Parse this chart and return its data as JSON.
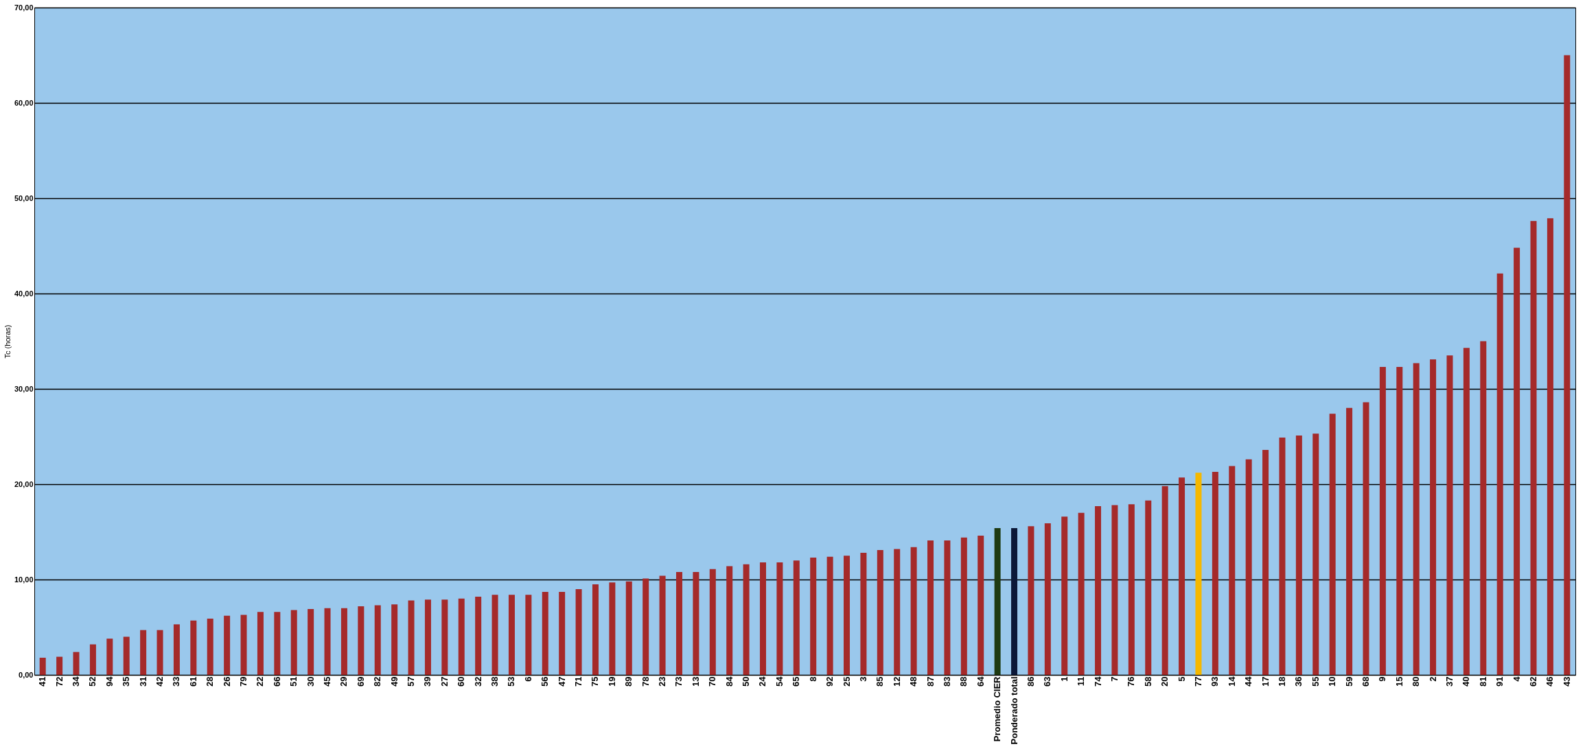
{
  "chart_data": {
    "type": "bar",
    "ylabel": "Tc (horas)",
    "categories": [
      "41",
      "72",
      "34",
      "52",
      "94",
      "35",
      "31",
      "42",
      "33",
      "61",
      "28",
      "26",
      "79",
      "22",
      "66",
      "51",
      "30",
      "45",
      "29",
      "69",
      "82",
      "49",
      "57",
      "39",
      "27",
      "60",
      "32",
      "38",
      "53",
      "6",
      "56",
      "47",
      "71",
      "75",
      "19",
      "89",
      "78",
      "23",
      "73",
      "13",
      "70",
      "84",
      "50",
      "24",
      "54",
      "65",
      "8",
      "92",
      "25",
      "3",
      "85",
      "12",
      "48",
      "87",
      "83",
      "88",
      "64",
      "Promedio CIER",
      "Ponderado total",
      "86",
      "63",
      "1",
      "11",
      "74",
      "7",
      "76",
      "58",
      "20",
      "5",
      "77",
      "93",
      "14",
      "44",
      "17",
      "18",
      "36",
      "55",
      "10",
      "59",
      "68",
      "9",
      "15",
      "80",
      "2",
      "37",
      "40",
      "81",
      "91",
      "4",
      "62",
      "46",
      "43"
    ],
    "values": [
      1.8,
      1.9,
      2.4,
      3.2,
      3.8,
      4.0,
      4.7,
      4.7,
      5.3,
      5.7,
      5.9,
      6.2,
      6.3,
      6.6,
      6.6,
      6.8,
      6.9,
      7.0,
      7.0,
      7.2,
      7.3,
      7.4,
      7.8,
      7.9,
      7.9,
      8.0,
      8.2,
      8.4,
      8.4,
      8.4,
      8.7,
      8.7,
      9.0,
      9.5,
      9.7,
      9.8,
      10.1,
      10.4,
      10.8,
      10.8,
      11.1,
      11.4,
      11.6,
      11.8,
      11.8,
      12.0,
      12.3,
      12.4,
      12.5,
      12.8,
      13.1,
      13.2,
      13.4,
      14.1,
      14.1,
      14.4,
      14.6,
      15.4,
      15.4,
      15.6,
      15.9,
      16.6,
      17.0,
      17.7,
      17.8,
      17.9,
      18.3,
      19.8,
      20.7,
      21.2,
      21.3,
      21.9,
      22.6,
      23.6,
      24.9,
      25.1,
      25.3,
      27.4,
      28.0,
      28.6,
      32.3,
      32.3,
      32.7,
      33.1,
      33.5,
      34.3,
      35.0,
      42.1,
      44.8,
      47.6,
      47.9,
      65.0
    ],
    "colors": [
      "#a52a2a",
      "#a52a2a",
      "#a52a2a",
      "#a52a2a",
      "#a52a2a",
      "#a52a2a",
      "#a52a2a",
      "#a52a2a",
      "#a52a2a",
      "#a52a2a",
      "#a52a2a",
      "#a52a2a",
      "#a52a2a",
      "#a52a2a",
      "#a52a2a",
      "#a52a2a",
      "#a52a2a",
      "#a52a2a",
      "#a52a2a",
      "#a52a2a",
      "#a52a2a",
      "#a52a2a",
      "#a52a2a",
      "#a52a2a",
      "#a52a2a",
      "#a52a2a",
      "#a52a2a",
      "#a52a2a",
      "#a52a2a",
      "#a52a2a",
      "#a52a2a",
      "#a52a2a",
      "#a52a2a",
      "#a52a2a",
      "#a52a2a",
      "#a52a2a",
      "#a52a2a",
      "#a52a2a",
      "#a52a2a",
      "#a52a2a",
      "#a52a2a",
      "#a52a2a",
      "#a52a2a",
      "#a52a2a",
      "#a52a2a",
      "#a52a2a",
      "#a52a2a",
      "#a52a2a",
      "#a52a2a",
      "#a52a2a",
      "#a52a2a",
      "#a52a2a",
      "#a52a2a",
      "#a52a2a",
      "#a52a2a",
      "#a52a2a",
      "#a52a2a",
      "#1e3a12",
      "#0b1838",
      "#a52a2a",
      "#a52a2a",
      "#a52a2a",
      "#a52a2a",
      "#a52a2a",
      "#a52a2a",
      "#a52a2a",
      "#a52a2a",
      "#a52a2a",
      "#a52a2a",
      "#f5b800",
      "#a52a2a",
      "#a52a2a",
      "#a52a2a",
      "#a52a2a",
      "#a52a2a",
      "#a52a2a",
      "#a52a2a",
      "#a52a2a",
      "#a52a2a",
      "#a52a2a",
      "#a52a2a",
      "#a52a2a",
      "#a52a2a",
      "#a52a2a",
      "#a52a2a",
      "#a52a2a",
      "#a52a2a",
      "#a52a2a",
      "#a52a2a",
      "#a52a2a",
      "#a52a2a",
      "#a52a2a"
    ],
    "ylim": [
      0,
      70
    ],
    "yticks": [
      {
        "value": 0,
        "label": "0,00"
      },
      {
        "value": 10,
        "label": "10,00"
      },
      {
        "value": 20,
        "label": "20,00"
      },
      {
        "value": 30,
        "label": "30,00"
      },
      {
        "value": 40,
        "label": "40,00"
      },
      {
        "value": 50,
        "label": "50,00"
      },
      {
        "value": 60,
        "label": "60,00"
      },
      {
        "value": 70,
        "label": "70,00"
      }
    ],
    "grid": "y"
  }
}
